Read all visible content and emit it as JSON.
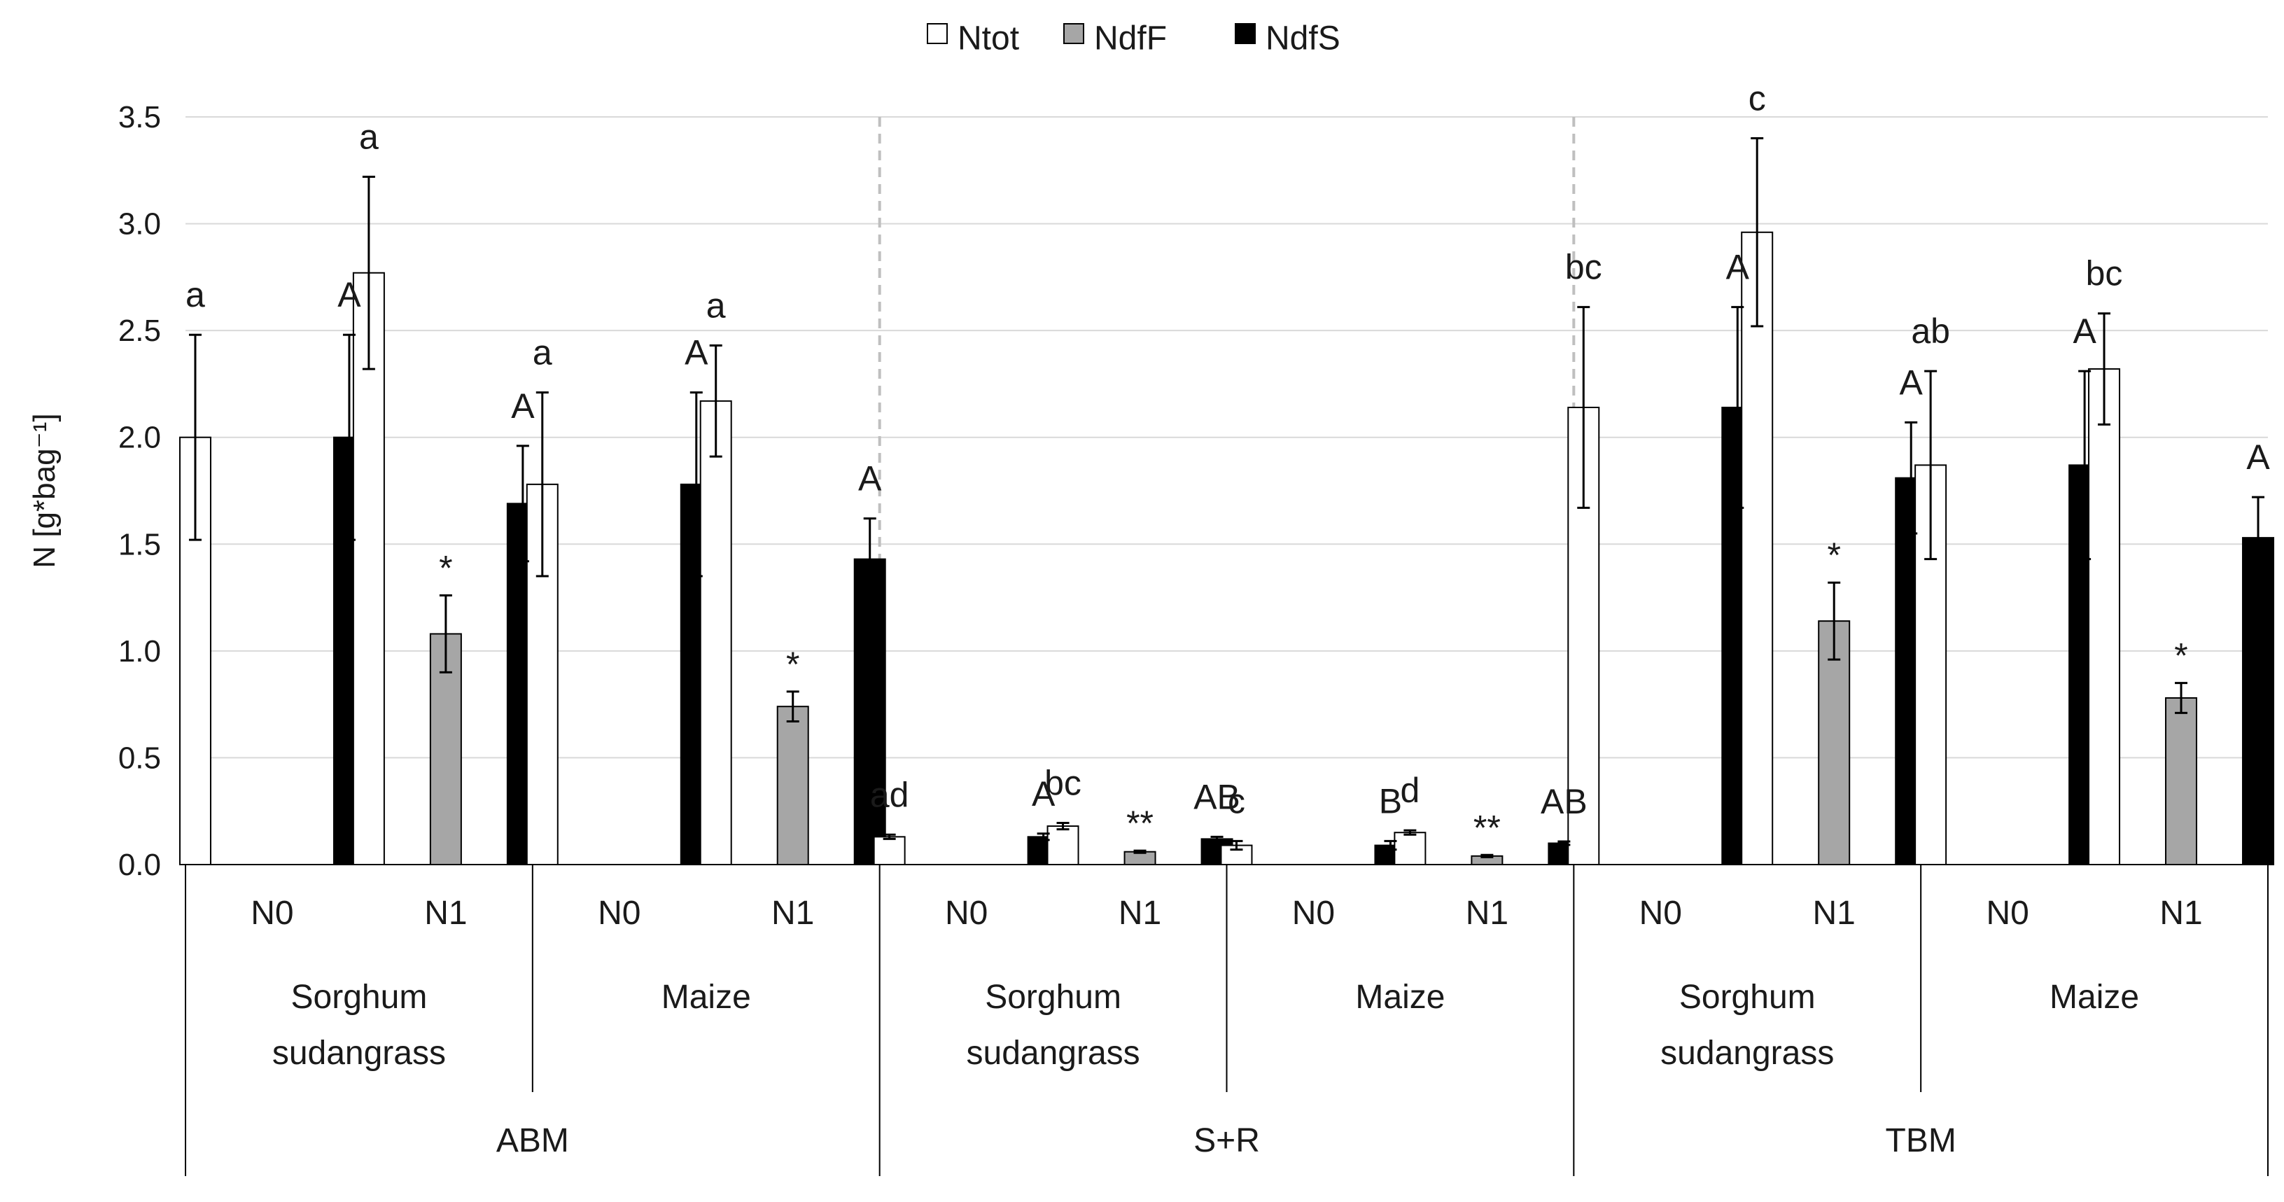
{
  "chart_data": {
    "type": "bar",
    "title": "",
    "xlabel": "",
    "ylabel": "N [g*bag⁻¹]",
    "ylim": [
      0,
      3.5
    ],
    "yticks": [
      "0.0",
      "0.5",
      "1.0",
      "1.5",
      "2.0",
      "2.5",
      "3.0",
      "3.5"
    ],
    "grid": true,
    "legend_position": "top-center",
    "series": [
      {
        "name": "Ntot",
        "color": "#ffffff"
      },
      {
        "name": "NdfF",
        "color": "#a6a6a6"
      },
      {
        "name": "NdfS",
        "color": "#000000"
      }
    ],
    "groups": [
      {
        "label": "ABM",
        "crops": [
          {
            "label_lines": [
              "Sorghum",
              "sudangrass"
            ],
            "levels": [
              {
                "label": "N0",
                "Ntot": 2.0,
                "Ntot_err": 0.48,
                "NdfF": null,
                "NdfF_err": null,
                "NdfS": 2.0,
                "NdfS_err": 0.48,
                "ann_ntot": "a",
                "ann_ndff": "",
                "ann_ndfs": "A"
              },
              {
                "label": "N1",
                "Ntot": 2.77,
                "Ntot_err": 0.45,
                "NdfF": 1.08,
                "NdfF_err": 0.18,
                "NdfS": 1.69,
                "NdfS_err": 0.27,
                "ann_ntot": "a",
                "ann_ndff": "*",
                "ann_ndfs": "A"
              }
            ]
          },
          {
            "label_lines": [
              "Maize"
            ],
            "levels": [
              {
                "label": "N0",
                "Ntot": 1.78,
                "Ntot_err": 0.43,
                "NdfF": null,
                "NdfF_err": null,
                "NdfS": 1.78,
                "NdfS_err": 0.43,
                "ann_ntot": "a",
                "ann_ndff": "",
                "ann_ndfs": "A"
              },
              {
                "label": "N1",
                "Ntot": 2.17,
                "Ntot_err": 0.26,
                "NdfF": 0.74,
                "NdfF_err": 0.07,
                "NdfS": 1.43,
                "NdfS_err": 0.19,
                "ann_ntot": "a",
                "ann_ndff": "*",
                "ann_ndfs": "A"
              }
            ]
          }
        ]
      },
      {
        "label": "S+R",
        "crops": [
          {
            "label_lines": [
              "Sorghum",
              "sudangrass"
            ],
            "levels": [
              {
                "label": "N0",
                "Ntot": 0.13,
                "Ntot_err": 0.01,
                "NdfF": null,
                "NdfF_err": null,
                "NdfS": 0.13,
                "NdfS_err": 0.015,
                "ann_ntot": "ad",
                "ann_ndff": "",
                "ann_ndfs": "A"
              },
              {
                "label": "N1",
                "Ntot": 0.18,
                "Ntot_err": 0.015,
                "NdfF": 0.06,
                "NdfF_err": 0.005,
                "NdfS": 0.12,
                "NdfS_err": 0.01,
                "ann_ntot": "bc",
                "ann_ndff": "**",
                "ann_ndfs": "AB"
              }
            ]
          },
          {
            "label_lines": [
              "Maize"
            ],
            "levels": [
              {
                "label": "N0",
                "Ntot": 0.09,
                "Ntot_err": 0.02,
                "NdfF": null,
                "NdfF_err": null,
                "NdfS": 0.09,
                "NdfS_err": 0.02,
                "ann_ntot": "c",
                "ann_ndff": "",
                "ann_ndfs": "B"
              },
              {
                "label": "N1",
                "Ntot": 0.15,
                "Ntot_err": 0.01,
                "NdfF": 0.04,
                "NdfF_err": 0.005,
                "NdfS": 0.1,
                "NdfS_err": 0.008,
                "ann_ntot": "d",
                "ann_ndff": "**",
                "ann_ndfs": "AB"
              }
            ]
          }
        ]
      },
      {
        "label": "TBM",
        "crops": [
          {
            "label_lines": [
              "Sorghum",
              "sudangrass"
            ],
            "levels": [
              {
                "label": "N0",
                "Ntot": 2.14,
                "Ntot_err": 0.47,
                "NdfF": null,
                "NdfF_err": null,
                "NdfS": 2.14,
                "NdfS_err": 0.47,
                "ann_ntot": "bc",
                "ann_ndff": "",
                "ann_ndfs": "A"
              },
              {
                "label": "N1",
                "Ntot": 2.96,
                "Ntot_err": 0.44,
                "NdfF": 1.14,
                "NdfF_err": 0.18,
                "NdfS": 1.81,
                "NdfS_err": 0.26,
                "ann_ntot": "c",
                "ann_ndff": "*",
                "ann_ndfs": "A"
              }
            ]
          },
          {
            "label_lines": [
              "Maize"
            ],
            "levels": [
              {
                "label": "N0",
                "Ntot": 1.87,
                "Ntot_err": 0.44,
                "NdfF": null,
                "NdfF_err": null,
                "NdfS": 1.87,
                "NdfS_err": 0.44,
                "ann_ntot": "ab",
                "ann_ndff": "",
                "ann_ndfs": "A"
              },
              {
                "label": "N1",
                "Ntot": 2.32,
                "Ntot_err": 0.26,
                "NdfF": 0.78,
                "NdfF_err": 0.07,
                "NdfS": 1.53,
                "NdfS_err": 0.19,
                "ann_ntot": "bc",
                "ann_ndff": "*",
                "ann_ndfs": "A"
              }
            ]
          }
        ]
      }
    ]
  }
}
